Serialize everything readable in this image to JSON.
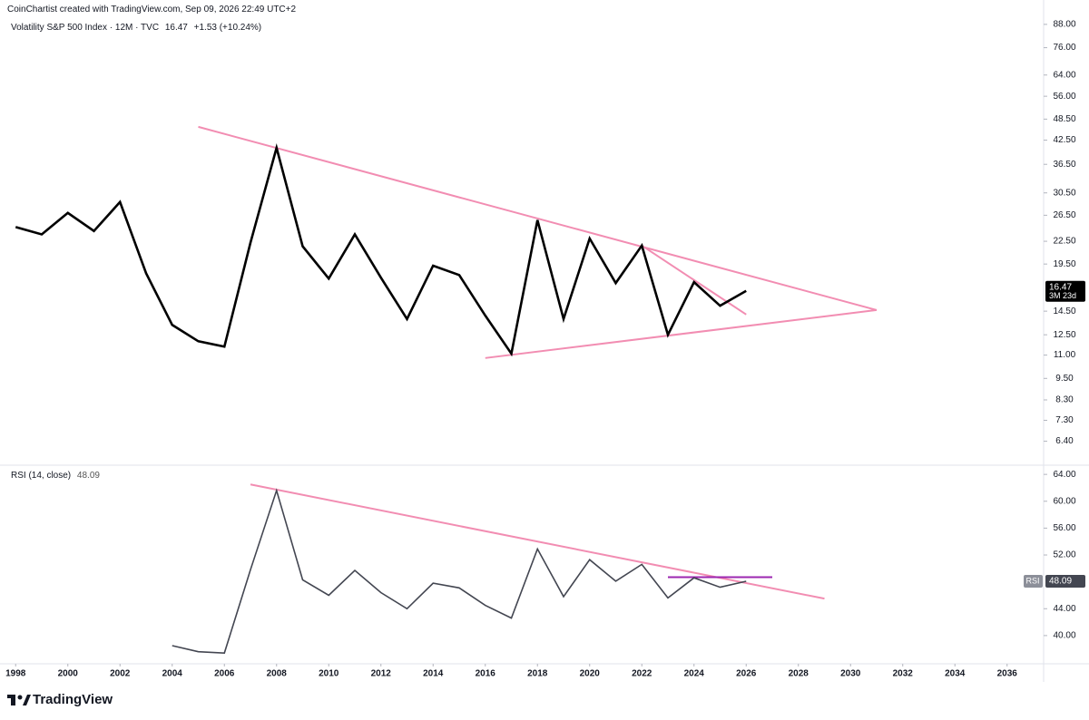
{
  "attribution": "CoinChartist created with TradingView.com, Sep 09, 2026 22:49 UTC+2",
  "brand": "TradingView",
  "chart_data": [
    {
      "type": "line",
      "title": "Volatility S&P 500 Index · 12M · TVC",
      "change": "+1.53 (+10.24%)",
      "countdown": "3M 23d",
      "x": [
        1998,
        1999,
        2000,
        2001,
        2002,
        2003,
        2004,
        2005,
        2006,
        2007,
        2008,
        2009,
        2010,
        2011,
        2012,
        2013,
        2014,
        2015,
        2016,
        2017,
        2018,
        2019,
        2020,
        2021,
        2022,
        2023,
        2024,
        2025,
        2026
      ],
      "values": [
        24.6,
        23.5,
        26.9,
        24.0,
        28.8,
        18.4,
        13.3,
        12.0,
        11.6,
        22.3,
        40.5,
        21.8,
        17.8,
        23.5,
        17.9,
        13.8,
        19.3,
        18.2,
        14.1,
        11.1,
        25.7,
        13.8,
        22.9,
        17.3,
        21.9,
        12.5,
        17.4,
        15.0,
        16.47
      ],
      "color": "#000000",
      "log_scale": true,
      "grid": false,
      "xlim": [
        1997.4,
        2037.4
      ],
      "ylim": [
        5.6,
        94.7
      ],
      "yticks": [
        {
          "value": 6.4,
          "label": "6.40"
        },
        {
          "value": 7.3,
          "label": "7.30"
        },
        {
          "value": 8.3,
          "label": "8.30"
        },
        {
          "value": 9.5,
          "label": "9.50"
        },
        {
          "value": 11,
          "label": "11.00"
        },
        {
          "value": 12.5,
          "label": "12.50"
        },
        {
          "value": 14.5,
          "label": "14.50"
        },
        {
          "value": 19.5,
          "label": "19.50"
        },
        {
          "value": 22.5,
          "label": "22.50"
        },
        {
          "value": 26.5,
          "label": "26.50"
        },
        {
          "value": 30.5,
          "label": "30.50"
        },
        {
          "value": 36.5,
          "label": "36.50"
        },
        {
          "value": 42.5,
          "label": "42.50"
        },
        {
          "value": 48.5,
          "label": "48.50"
        },
        {
          "value": 56,
          "label": "56.00"
        },
        {
          "value": 64,
          "label": "64.00"
        },
        {
          "value": 76,
          "label": "76.00"
        },
        {
          "value": 88,
          "label": "88.00"
        }
      ],
      "trendlines": [
        {
          "x": [
            2005,
            2031
          ],
          "y": [
            46.2,
            14.6
          ],
          "color": "#f28db2"
        },
        {
          "x": [
            2016,
            2031
          ],
          "y": [
            10.8,
            14.6
          ],
          "color": "#f28db2"
        },
        {
          "x": [
            2022,
            2026
          ],
          "y": [
            21.9,
            14.2
          ],
          "color": "#f28db2"
        }
      ]
    },
    {
      "type": "line",
      "title": "RSI (14, close)",
      "badge": "RSI",
      "x": [
        1998,
        1999,
        2000,
        2001,
        2002,
        2003,
        2004,
        2005,
        2006,
        2007,
        2008,
        2009,
        2010,
        2011,
        2012,
        2013,
        2014,
        2015,
        2016,
        2017,
        2018,
        2019,
        2020,
        2021,
        2022,
        2023,
        2024,
        2025,
        2026
      ],
      "values": [
        null,
        null,
        null,
        null,
        null,
        null,
        38.5,
        37.6,
        37.4,
        49.8,
        61.6,
        48.3,
        46.0,
        49.7,
        46.4,
        44.0,
        47.8,
        47.1,
        44.5,
        42.6,
        52.9,
        45.8,
        51.3,
        48.1,
        50.6,
        45.6,
        48.6,
        47.2,
        48.09
      ],
      "color": "#434651",
      "log_scale": false,
      "grid": false,
      "xlim": [
        1997.4,
        2037.4
      ],
      "ylim": [
        35.8,
        65.1
      ],
      "xticks": [
        1998,
        2000,
        2002,
        2004,
        2006,
        2008,
        2010,
        2012,
        2014,
        2016,
        2018,
        2020,
        2022,
        2024,
        2026,
        2028,
        2030,
        2032,
        2034,
        2036
      ],
      "yticks": [
        {
          "value": 40,
          "label": "40.00"
        },
        {
          "value": 44,
          "label": "44.00"
        },
        {
          "value": 52,
          "label": "52.00"
        },
        {
          "value": 56,
          "label": "56.00"
        },
        {
          "value": 60,
          "label": "60.00"
        },
        {
          "value": 64,
          "label": "64.00"
        }
      ],
      "trendlines": [
        {
          "x": [
            2007,
            2029
          ],
          "y": [
            62.5,
            45.5
          ],
          "color": "#f28db2"
        },
        {
          "x": [
            2023,
            2027
          ],
          "y": [
            48.7,
            48.7
          ],
          "color": "#9c27b0"
        }
      ]
    }
  ]
}
